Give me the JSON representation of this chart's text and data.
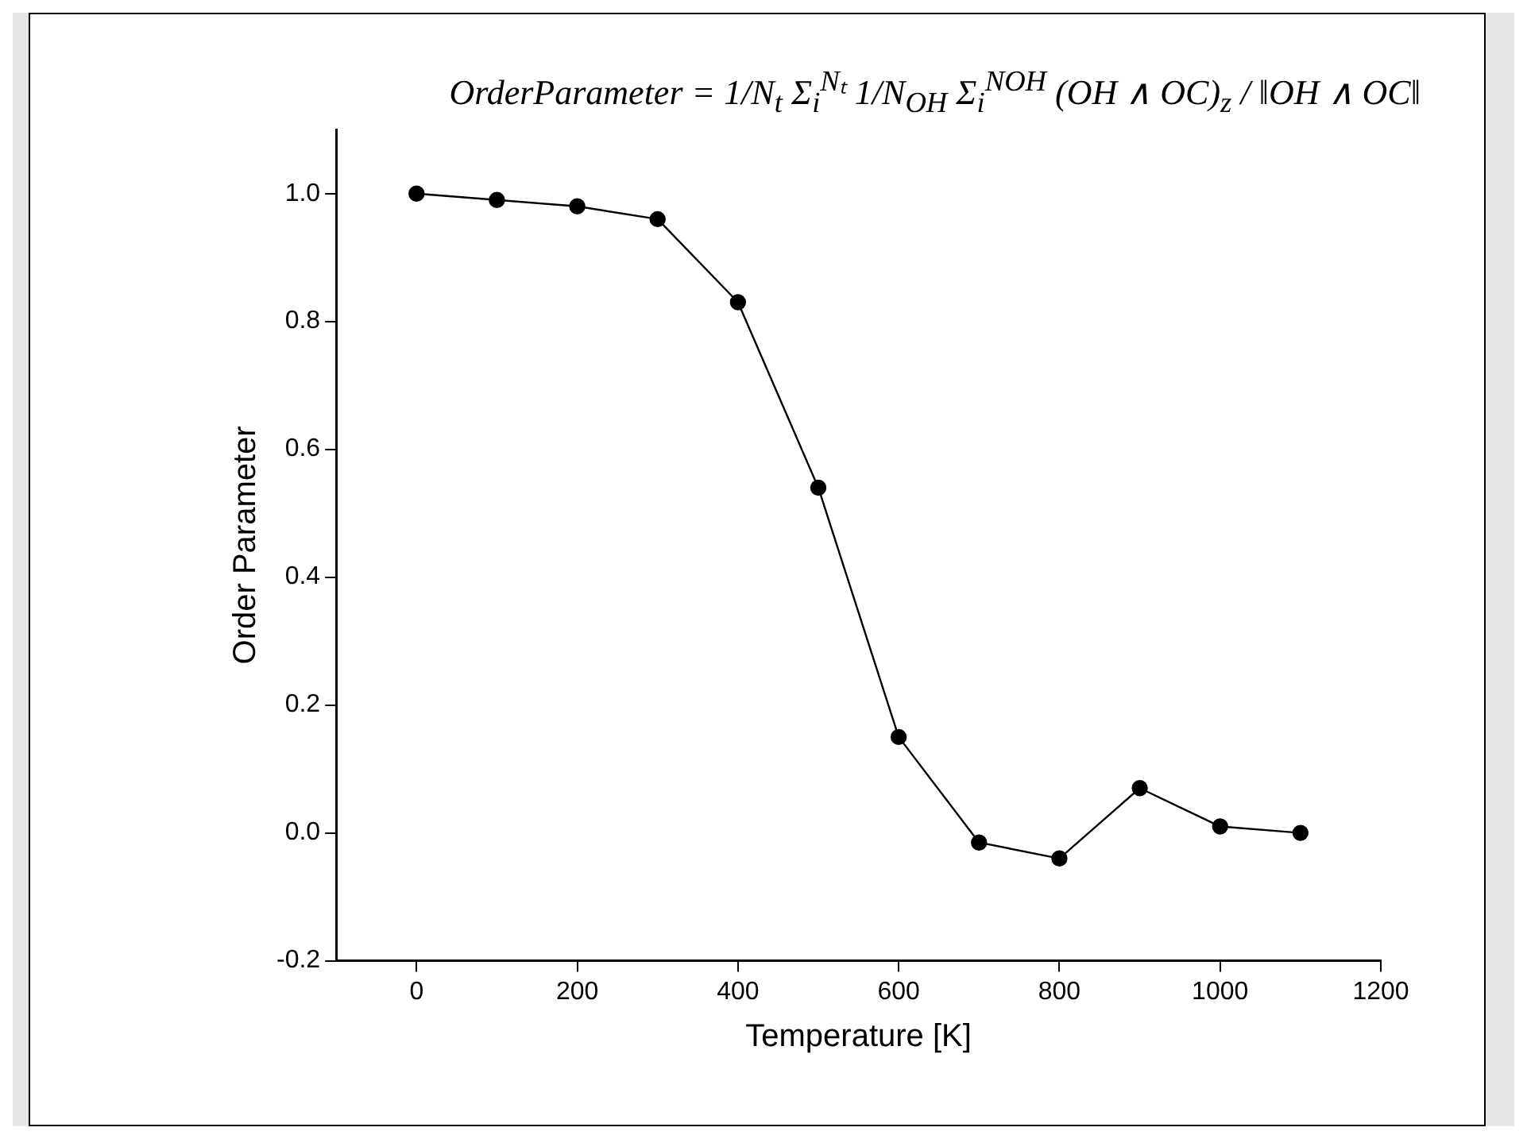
{
  "chart_data": {
    "type": "line",
    "xlabel": "Temperature [K]",
    "ylabel": "Order Parameter",
    "annotations": [
      "OrderParameter = 1/N$_{t}$ Σ$_{i}$$^{Nₜ}$ 1/N$_{OH}$ Σ$_{i}$$^{NOH}$ (OH ∧ OC)$_{z}$ / ‖OH ∧ OC‖"
    ],
    "x": [
      0,
      100,
      200,
      300,
      400,
      500,
      600,
      700,
      800,
      900,
      1000,
      1100
    ],
    "series": [
      {
        "color": "#000000",
        "values": [
          1.0,
          0.99,
          0.98,
          0.96,
          0.83,
          0.54,
          0.15,
          -0.015,
          -0.04,
          0.07,
          0.01,
          0.0
        ]
      }
    ],
    "xlim": [
      -100,
      1200
    ],
    "xticks": [
      0,
      200,
      400,
      600,
      800,
      1000,
      1200
    ],
    "ylim": [
      -0.2,
      1.1
    ],
    "yticks": [
      {
        "value": -0.2,
        "label": "-0.2"
      },
      {
        "value": 0,
        "label": "0.0"
      },
      {
        "value": 0.2,
        "label": "0.2"
      },
      {
        "value": 0.4,
        "label": "0.4"
      },
      {
        "value": 0.6,
        "label": "0.6"
      },
      {
        "value": 0.8,
        "label": "0.8"
      },
      {
        "value": 1.0,
        "label": "1.0"
      }
    ],
    "grid": false,
    "legend": false,
    "marker": "circle",
    "line_style": "solid"
  }
}
